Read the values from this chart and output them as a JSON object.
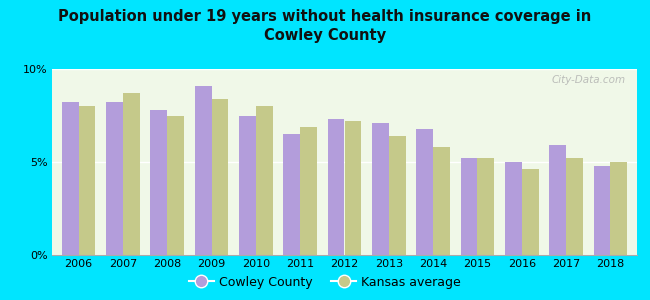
{
  "title": "Population under 19 years without health insurance coverage in\nCowley County",
  "years": [
    2006,
    2007,
    2008,
    2009,
    2010,
    2011,
    2012,
    2013,
    2014,
    2015,
    2016,
    2017,
    2018
  ],
  "cowley": [
    8.2,
    8.2,
    7.8,
    9.1,
    7.5,
    6.5,
    7.3,
    7.1,
    6.8,
    5.2,
    5.0,
    5.9,
    4.8
  ],
  "kansas": [
    8.0,
    8.7,
    7.5,
    8.4,
    8.0,
    6.9,
    7.2,
    6.4,
    5.8,
    5.2,
    4.6,
    5.2,
    5.0
  ],
  "cowley_color": "#b39ddb",
  "kansas_color": "#c5c98a",
  "background_outer": "#00e5ff",
  "background_inner": "#f0f8e8",
  "ylim": [
    0,
    10
  ],
  "yticks": [
    0,
    5,
    10
  ],
  "ytick_labels": [
    "0%",
    "5%",
    "10%"
  ],
  "bar_width": 0.38,
  "legend_cowley": "Cowley County",
  "legend_kansas": "Kansas average",
  "watermark": "City-Data.com"
}
